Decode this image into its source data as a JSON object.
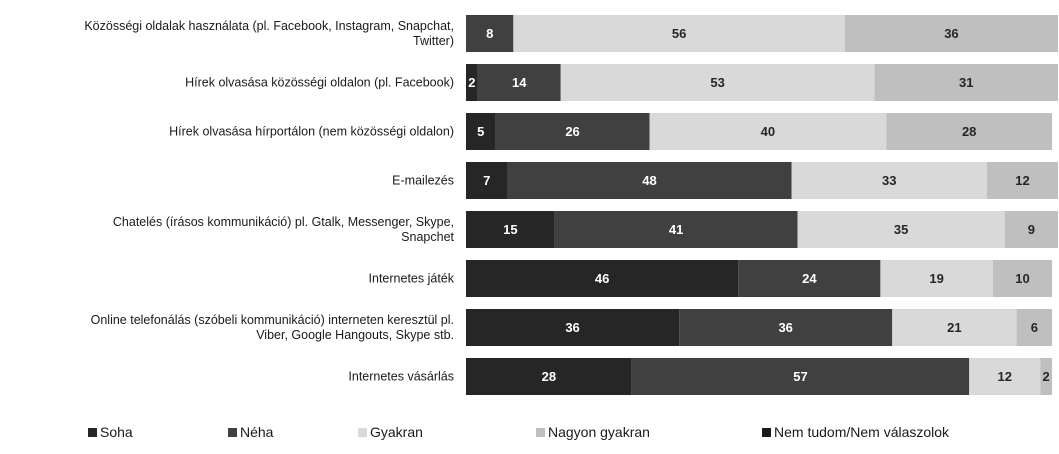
{
  "chart_data": {
    "type": "bar",
    "orientation": "horizontal",
    "stacked": true,
    "percent_stacked": true,
    "categories": [
      "Közösségi oldalak használata (pl. Facebook, Instagram, Snapchat, Twitter)",
      "Hírek olvasása közösségi oldalon (pl. Facebook)",
      "Hírek olvasása hírportálon (nem közösségi oldalon)",
      "E-mailezés",
      "Chatelés (írásos kommunikáció) pl. Gtalk, Messenger, Skype, Snapchet",
      "Internetes játék",
      "Online telefonálás (szóbeli kommunikáció) interneten keresztül pl. Viber, Google Hangouts, Skype stb.",
      "Internetes vásárlás"
    ],
    "category_lines": [
      [
        "Közösségi oldalak használata (pl. Facebook, Instagram, Snapchat,",
        "Twitter)"
      ],
      [
        "Hírek olvasása közösségi oldalon (pl. Facebook)"
      ],
      [
        "Hírek olvasása hírportálon (nem közösségi oldalon)"
      ],
      [
        "E-mailezés"
      ],
      [
        "Chatelés (írásos kommunikáció) pl. Gtalk, Messenger, Skype,",
        "Snapchet"
      ],
      [
        "Internetes játék"
      ],
      [
        "Online telefonálás (szóbeli kommunikáció) interneten keresztül pl.",
        "Viber, Google Hangouts, Skype stb."
      ],
      [
        "Internetes vásárlás"
      ]
    ],
    "series": [
      {
        "name": "Soha",
        "color": "#262626",
        "text_color": "#ffffff",
        "values": [
          0,
          2,
          5,
          7,
          15,
          46,
          36,
          28
        ]
      },
      {
        "name": "Néha",
        "color": "#404040",
        "text_color": "#ffffff",
        "values": [
          8,
          14,
          26,
          48,
          41,
          24,
          36,
          57
        ]
      },
      {
        "name": "Gyakran",
        "color": "#d9d9d9",
        "text_color": "#262626",
        "values": [
          56,
          53,
          40,
          33,
          35,
          19,
          21,
          12
        ]
      },
      {
        "name": "Nagyon gyakran",
        "color": "#bfbfbf",
        "text_color": "#262626",
        "values": [
          36,
          31,
          28,
          12,
          9,
          10,
          6,
          2
        ]
      },
      {
        "name": "Nem tudom/Nem válaszolok",
        "color": "#1a1a1a",
        "text_color": "#ffffff",
        "values": [
          0,
          0,
          0,
          0,
          0,
          0,
          0,
          0
        ]
      }
    ],
    "legend_position": "bottom",
    "grid": false
  }
}
